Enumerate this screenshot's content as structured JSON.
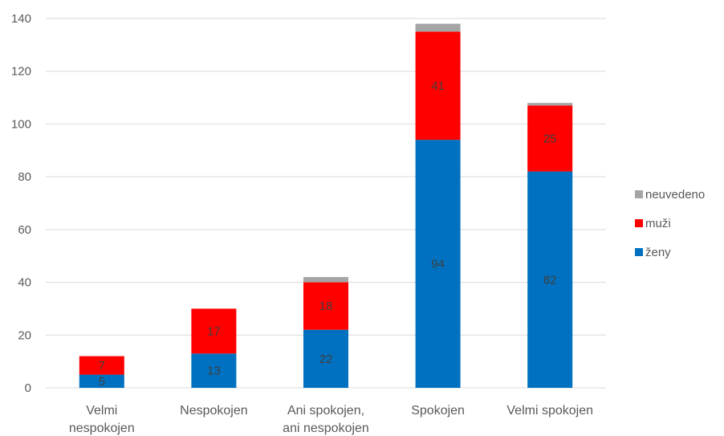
{
  "chart_data": {
    "type": "bar",
    "stacked": true,
    "categories": [
      [
        "Velmi",
        "nespokojen"
      ],
      [
        "Nespokojen"
      ],
      [
        "Ani spokojen,",
        "ani nespokojen"
      ],
      [
        "Spokojen"
      ],
      [
        "Velmi spokojen"
      ]
    ],
    "series": [
      {
        "name": "ženy",
        "color": "#0070C0",
        "values": [
          5,
          13,
          22,
          94,
          82
        ],
        "labels": [
          "5",
          "13",
          "22",
          "94",
          "82"
        ]
      },
      {
        "name": "muži",
        "color": "#FF0000",
        "values": [
          7,
          17,
          18,
          41,
          25
        ],
        "labels": [
          "7",
          "17",
          "18",
          "41",
          "25"
        ]
      },
      {
        "name": "neuvedeno",
        "color": "#A5A5A5",
        "values": [
          0,
          0,
          2,
          3,
          1
        ],
        "labels": [
          "",
          "",
          "",
          "",
          ""
        ]
      }
    ],
    "yticks": [
      "0",
      "20",
      "40",
      "60",
      "80",
      "100",
      "120",
      "140"
    ],
    "ylim": [
      0,
      140
    ],
    "grid": true,
    "legend": "right",
    "legend_order": [
      "neuvedeno",
      "muži",
      "ženy"
    ],
    "title": "",
    "xlabel": "",
    "ylabel": ""
  }
}
